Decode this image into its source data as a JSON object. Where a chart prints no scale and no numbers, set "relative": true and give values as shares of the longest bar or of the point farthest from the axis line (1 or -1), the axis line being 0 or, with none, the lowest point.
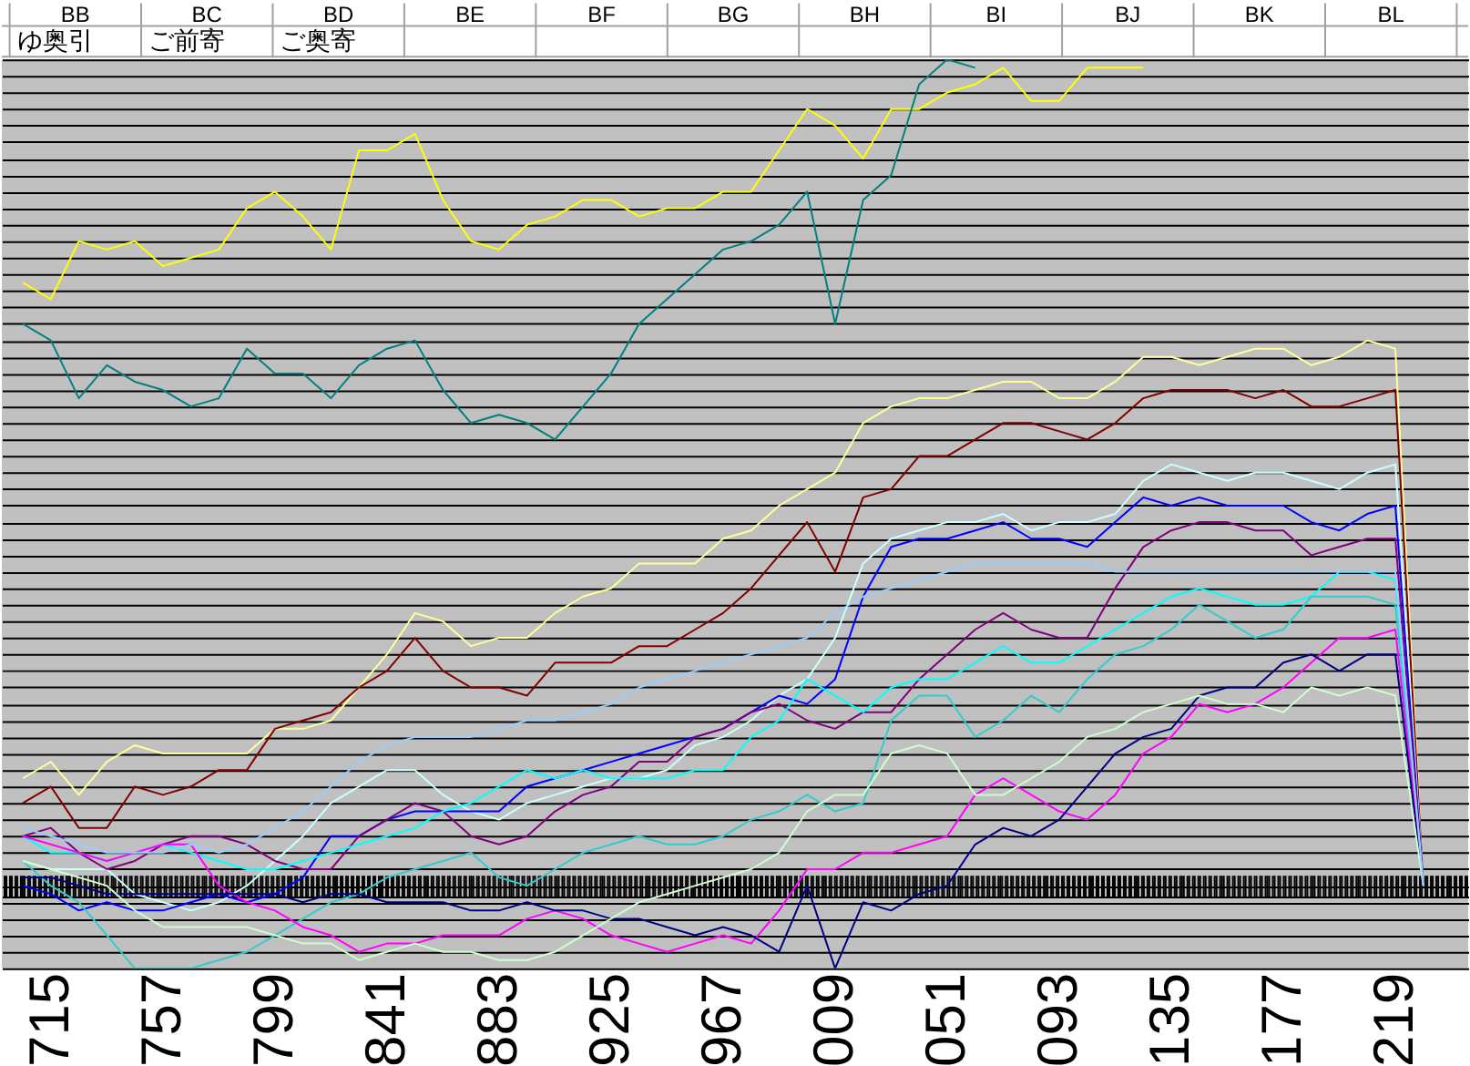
{
  "chart_data": [
    {
      "type": "other",
      "categories": [
        "BB",
        "BC",
        "BD",
        "BE",
        "BF",
        "BG",
        "BH",
        "BI",
        "BJ",
        "BK",
        "BL"
      ],
      "annotations": [
        "ゆ奥引",
        "ご前寄",
        "ご奥寄"
      ]
    },
    {
      "type": "line",
      "relative": true,
      "grid": "y",
      "categories": [
        null,
        "715",
        null,
        null,
        null,
        "757",
        null,
        null,
        null,
        "799",
        null,
        null,
        null,
        "841",
        null,
        null,
        null,
        "883",
        null,
        null,
        null,
        "925",
        null,
        null,
        null,
        "967",
        null,
        null,
        null,
        "009",
        null,
        null,
        null,
        "051",
        null,
        null,
        null,
        "093",
        null,
        null,
        null,
        "135",
        null,
        null,
        null,
        "177",
        null,
        null,
        null,
        "219",
        null
      ],
      "series": [
        {
          "color": "#ffff00",
          "values": [
            0.73,
            0.71,
            0.78,
            0.77,
            0.78,
            0.75,
            0.76,
            0.77,
            0.82,
            0.84,
            0.81,
            0.77,
            0.89,
            0.89,
            0.91,
            0.83,
            0.78,
            0.77,
            0.8,
            0.81,
            0.83,
            0.83,
            0.81,
            0.82,
            0.82,
            0.84,
            0.84,
            0.89,
            0.94,
            0.92,
            0.88,
            0.94,
            0.94,
            0.96,
            0.97,
            0.99,
            0.95,
            0.95,
            0.99,
            0.99,
            0.99,
            null,
            null,
            null,
            null,
            null,
            null,
            null,
            null,
            null,
            null
          ]
        },
        {
          "color": "#008080",
          "values": [
            0.68,
            0.66,
            0.59,
            0.63,
            0.61,
            0.6,
            0.58,
            0.59,
            0.65,
            0.62,
            0.62,
            0.59,
            0.63,
            0.65,
            0.66,
            0.6,
            0.56,
            0.57,
            0.56,
            0.54,
            0.58,
            0.62,
            0.68,
            0.71,
            0.74,
            0.77,
            0.78,
            0.8,
            0.84,
            0.68,
            0.83,
            0.86,
            0.97,
            1.0,
            0.99,
            null,
            null,
            null,
            null,
            null,
            null,
            null,
            null,
            null,
            null,
            null,
            null,
            null,
            null,
            null,
            null
          ]
        },
        {
          "color": "#ffff99",
          "values": [
            0.13,
            0.15,
            0.11,
            0.15,
            0.17,
            0.16,
            0.16,
            0.16,
            0.16,
            0.19,
            0.19,
            0.2,
            0.24,
            0.28,
            0.33,
            0.32,
            0.29,
            0.3,
            0.3,
            0.33,
            0.35,
            0.36,
            0.39,
            0.39,
            0.39,
            0.42,
            0.43,
            0.46,
            0.48,
            0.5,
            0.56,
            0.58,
            0.59,
            0.59,
            0.6,
            0.61,
            0.61,
            0.59,
            0.59,
            0.61,
            0.64,
            0.64,
            0.63,
            0.64,
            0.65,
            0.65,
            0.63,
            0.64,
            0.66,
            0.65,
            0
          ]
        },
        {
          "color": "#800000",
          "values": [
            0.1,
            0.12,
            0.07,
            0.07,
            0.12,
            0.11,
            0.12,
            0.14,
            0.14,
            0.19,
            0.2,
            0.21,
            0.24,
            0.26,
            0.3,
            0.26,
            0.24,
            0.24,
            0.23,
            0.27,
            0.27,
            0.27,
            0.29,
            0.29,
            0.31,
            0.33,
            0.36,
            0.4,
            0.44,
            0.38,
            0.47,
            0.48,
            0.52,
            0.52,
            0.54,
            0.56,
            0.56,
            0.55,
            0.54,
            0.56,
            0.59,
            0.6,
            0.6,
            0.6,
            0.59,
            0.6,
            0.58,
            0.58,
            0.59,
            0.6,
            0
          ]
        },
        {
          "color": "#ccffff",
          "values": [
            0.03,
            0.02,
            0.02,
            0.02,
            -0.01,
            -0.02,
            -0.03,
            -0.02,
            0.0,
            0.03,
            0.06,
            0.1,
            0.12,
            0.14,
            0.14,
            0.11,
            0.09,
            0.08,
            0.1,
            0.11,
            0.12,
            0.13,
            0.13,
            0.14,
            0.17,
            0.18,
            0.2,
            0.23,
            0.25,
            0.3,
            0.39,
            0.42,
            0.43,
            0.44,
            0.44,
            0.45,
            0.43,
            0.44,
            0.44,
            0.45,
            0.49,
            0.51,
            0.5,
            0.49,
            0.5,
            0.5,
            0.49,
            0.48,
            0.5,
            0.51,
            0
          ]
        },
        {
          "color": "#0000ff",
          "values": [
            0.0,
            -0.01,
            -0.03,
            -0.02,
            -0.03,
            -0.03,
            -0.02,
            -0.01,
            -0.02,
            -0.01,
            0.01,
            0.06,
            0.06,
            0.08,
            0.09,
            0.09,
            0.09,
            0.09,
            0.12,
            0.13,
            0.14,
            0.15,
            0.16,
            0.17,
            0.18,
            0.19,
            0.21,
            0.23,
            0.22,
            0.25,
            0.35,
            0.41,
            0.42,
            0.42,
            0.43,
            0.44,
            0.42,
            0.42,
            0.41,
            0.44,
            0.47,
            0.46,
            0.47,
            0.46,
            0.46,
            0.46,
            0.44,
            0.43,
            0.45,
            0.46,
            0
          ]
        },
        {
          "color": "#800080",
          "values": [
            0.06,
            0.07,
            0.04,
            0.02,
            0.03,
            0.05,
            0.06,
            0.06,
            0.05,
            0.03,
            0.02,
            0.02,
            0.06,
            0.08,
            0.1,
            0.09,
            0.06,
            0.05,
            0.06,
            0.09,
            0.11,
            0.12,
            0.15,
            0.15,
            0.18,
            0.19,
            0.21,
            0.22,
            0.2,
            0.19,
            0.21,
            0.21,
            0.25,
            0.28,
            0.31,
            0.33,
            0.31,
            0.3,
            0.3,
            0.36,
            0.41,
            0.43,
            0.44,
            0.44,
            0.43,
            0.43,
            0.4,
            0.41,
            0.42,
            0.42,
            0
          ]
        },
        {
          "color": "#00ffff",
          "values": [
            0.06,
            0.04,
            0.04,
            0.03,
            0.04,
            0.05,
            0.04,
            0.03,
            0.02,
            0.02,
            0.03,
            0.04,
            0.05,
            0.06,
            0.07,
            0.09,
            0.1,
            0.12,
            0.14,
            0.13,
            0.14,
            0.13,
            0.13,
            0.13,
            0.14,
            0.14,
            0.18,
            0.2,
            0.25,
            0.23,
            0.21,
            0.24,
            0.25,
            0.25,
            0.27,
            0.29,
            0.27,
            0.27,
            0.29,
            0.31,
            0.33,
            0.35,
            0.36,
            0.35,
            0.34,
            0.34,
            0.35,
            0.38,
            0.38,
            0.37,
            0
          ]
        },
        {
          "color": "#33cccc",
          "values": [
            0.03,
            0.0,
            -0.02,
            -0.06,
            -0.1,
            -0.1,
            -0.1,
            -0.09,
            -0.08,
            -0.06,
            -0.04,
            -0.02,
            -0.01,
            0.01,
            0.02,
            0.03,
            0.04,
            0.01,
            0.0,
            0.02,
            0.04,
            0.05,
            0.06,
            0.05,
            0.05,
            0.06,
            0.08,
            0.09,
            0.11,
            0.09,
            0.1,
            0.2,
            0.23,
            0.23,
            0.18,
            0.2,
            0.23,
            0.21,
            0.25,
            0.28,
            0.29,
            0.31,
            0.34,
            0.32,
            0.3,
            0.31,
            0.35,
            0.35,
            0.35,
            0.34,
            0
          ]
        },
        {
          "color": "#ff00ff",
          "values": [
            0.06,
            0.05,
            0.04,
            0.03,
            0.04,
            0.05,
            0.05,
            0.0,
            -0.02,
            -0.03,
            -0.05,
            -0.06,
            -0.08,
            -0.07,
            -0.07,
            -0.06,
            -0.06,
            -0.06,
            -0.04,
            -0.03,
            -0.04,
            -0.06,
            -0.07,
            -0.08,
            -0.07,
            -0.06,
            -0.07,
            -0.03,
            0.02,
            0.02,
            0.04,
            0.04,
            0.05,
            0.06,
            0.11,
            0.13,
            0.11,
            0.09,
            0.08,
            0.11,
            0.16,
            0.18,
            0.22,
            0.21,
            0.22,
            0.24,
            0.27,
            0.3,
            0.3,
            0.31,
            0
          ]
        },
        {
          "color": "#000080",
          "values": [
            0.01,
            0.01,
            0.0,
            -0.01,
            -0.01,
            -0.01,
            -0.01,
            -0.01,
            -0.01,
            -0.01,
            -0.02,
            -0.01,
            -0.01,
            -0.02,
            -0.02,
            -0.02,
            -0.03,
            -0.03,
            -0.02,
            -0.03,
            -0.03,
            -0.04,
            -0.04,
            -0.05,
            -0.06,
            -0.05,
            -0.06,
            -0.08,
            0.0,
            -0.1,
            -0.02,
            -0.03,
            -0.01,
            0.0,
            0.05,
            0.07,
            0.06,
            0.08,
            0.12,
            0.16,
            0.18,
            0.19,
            0.23,
            0.24,
            0.24,
            0.27,
            0.28,
            0.26,
            0.28,
            0.28,
            0
          ]
        },
        {
          "color": "#ccffcc",
          "values": [
            0.03,
            0.02,
            0.01,
            0.0,
            -0.03,
            -0.05,
            -0.05,
            -0.05,
            -0.05,
            -0.06,
            -0.07,
            -0.07,
            -0.09,
            -0.08,
            -0.07,
            -0.08,
            -0.08,
            -0.09,
            -0.09,
            -0.08,
            -0.06,
            -0.04,
            -0.02,
            -0.01,
            0.0,
            0.01,
            0.02,
            0.04,
            0.09,
            0.11,
            0.11,
            0.16,
            0.17,
            0.16,
            0.11,
            0.11,
            0.13,
            0.15,
            0.18,
            0.19,
            0.21,
            0.22,
            0.23,
            0.22,
            0.22,
            0.21,
            0.24,
            0.23,
            0.24,
            0.23,
            0
          ]
        },
        {
          "color": "#99ccff",
          "values": [
            0.07,
            0.06,
            0.05,
            0.04,
            0.04,
            0.04,
            0.05,
            0.04,
            0.05,
            0.07,
            0.09,
            0.12,
            0.15,
            0.17,
            0.18,
            0.18,
            0.18,
            0.19,
            0.2,
            0.2,
            0.21,
            0.22,
            0.24,
            0.25,
            0.26,
            0.27,
            0.28,
            0.29,
            0.3,
            0.33,
            0.35,
            0.36,
            0.37,
            0.38,
            0.39,
            0.39,
            0.39,
            0.39,
            0.39,
            0.38,
            0.38,
            0.38,
            0.38,
            0.38,
            0.38,
            0.38,
            0.38,
            0.38,
            0.38,
            0.38,
            0
          ]
        }
      ]
    }
  ]
}
